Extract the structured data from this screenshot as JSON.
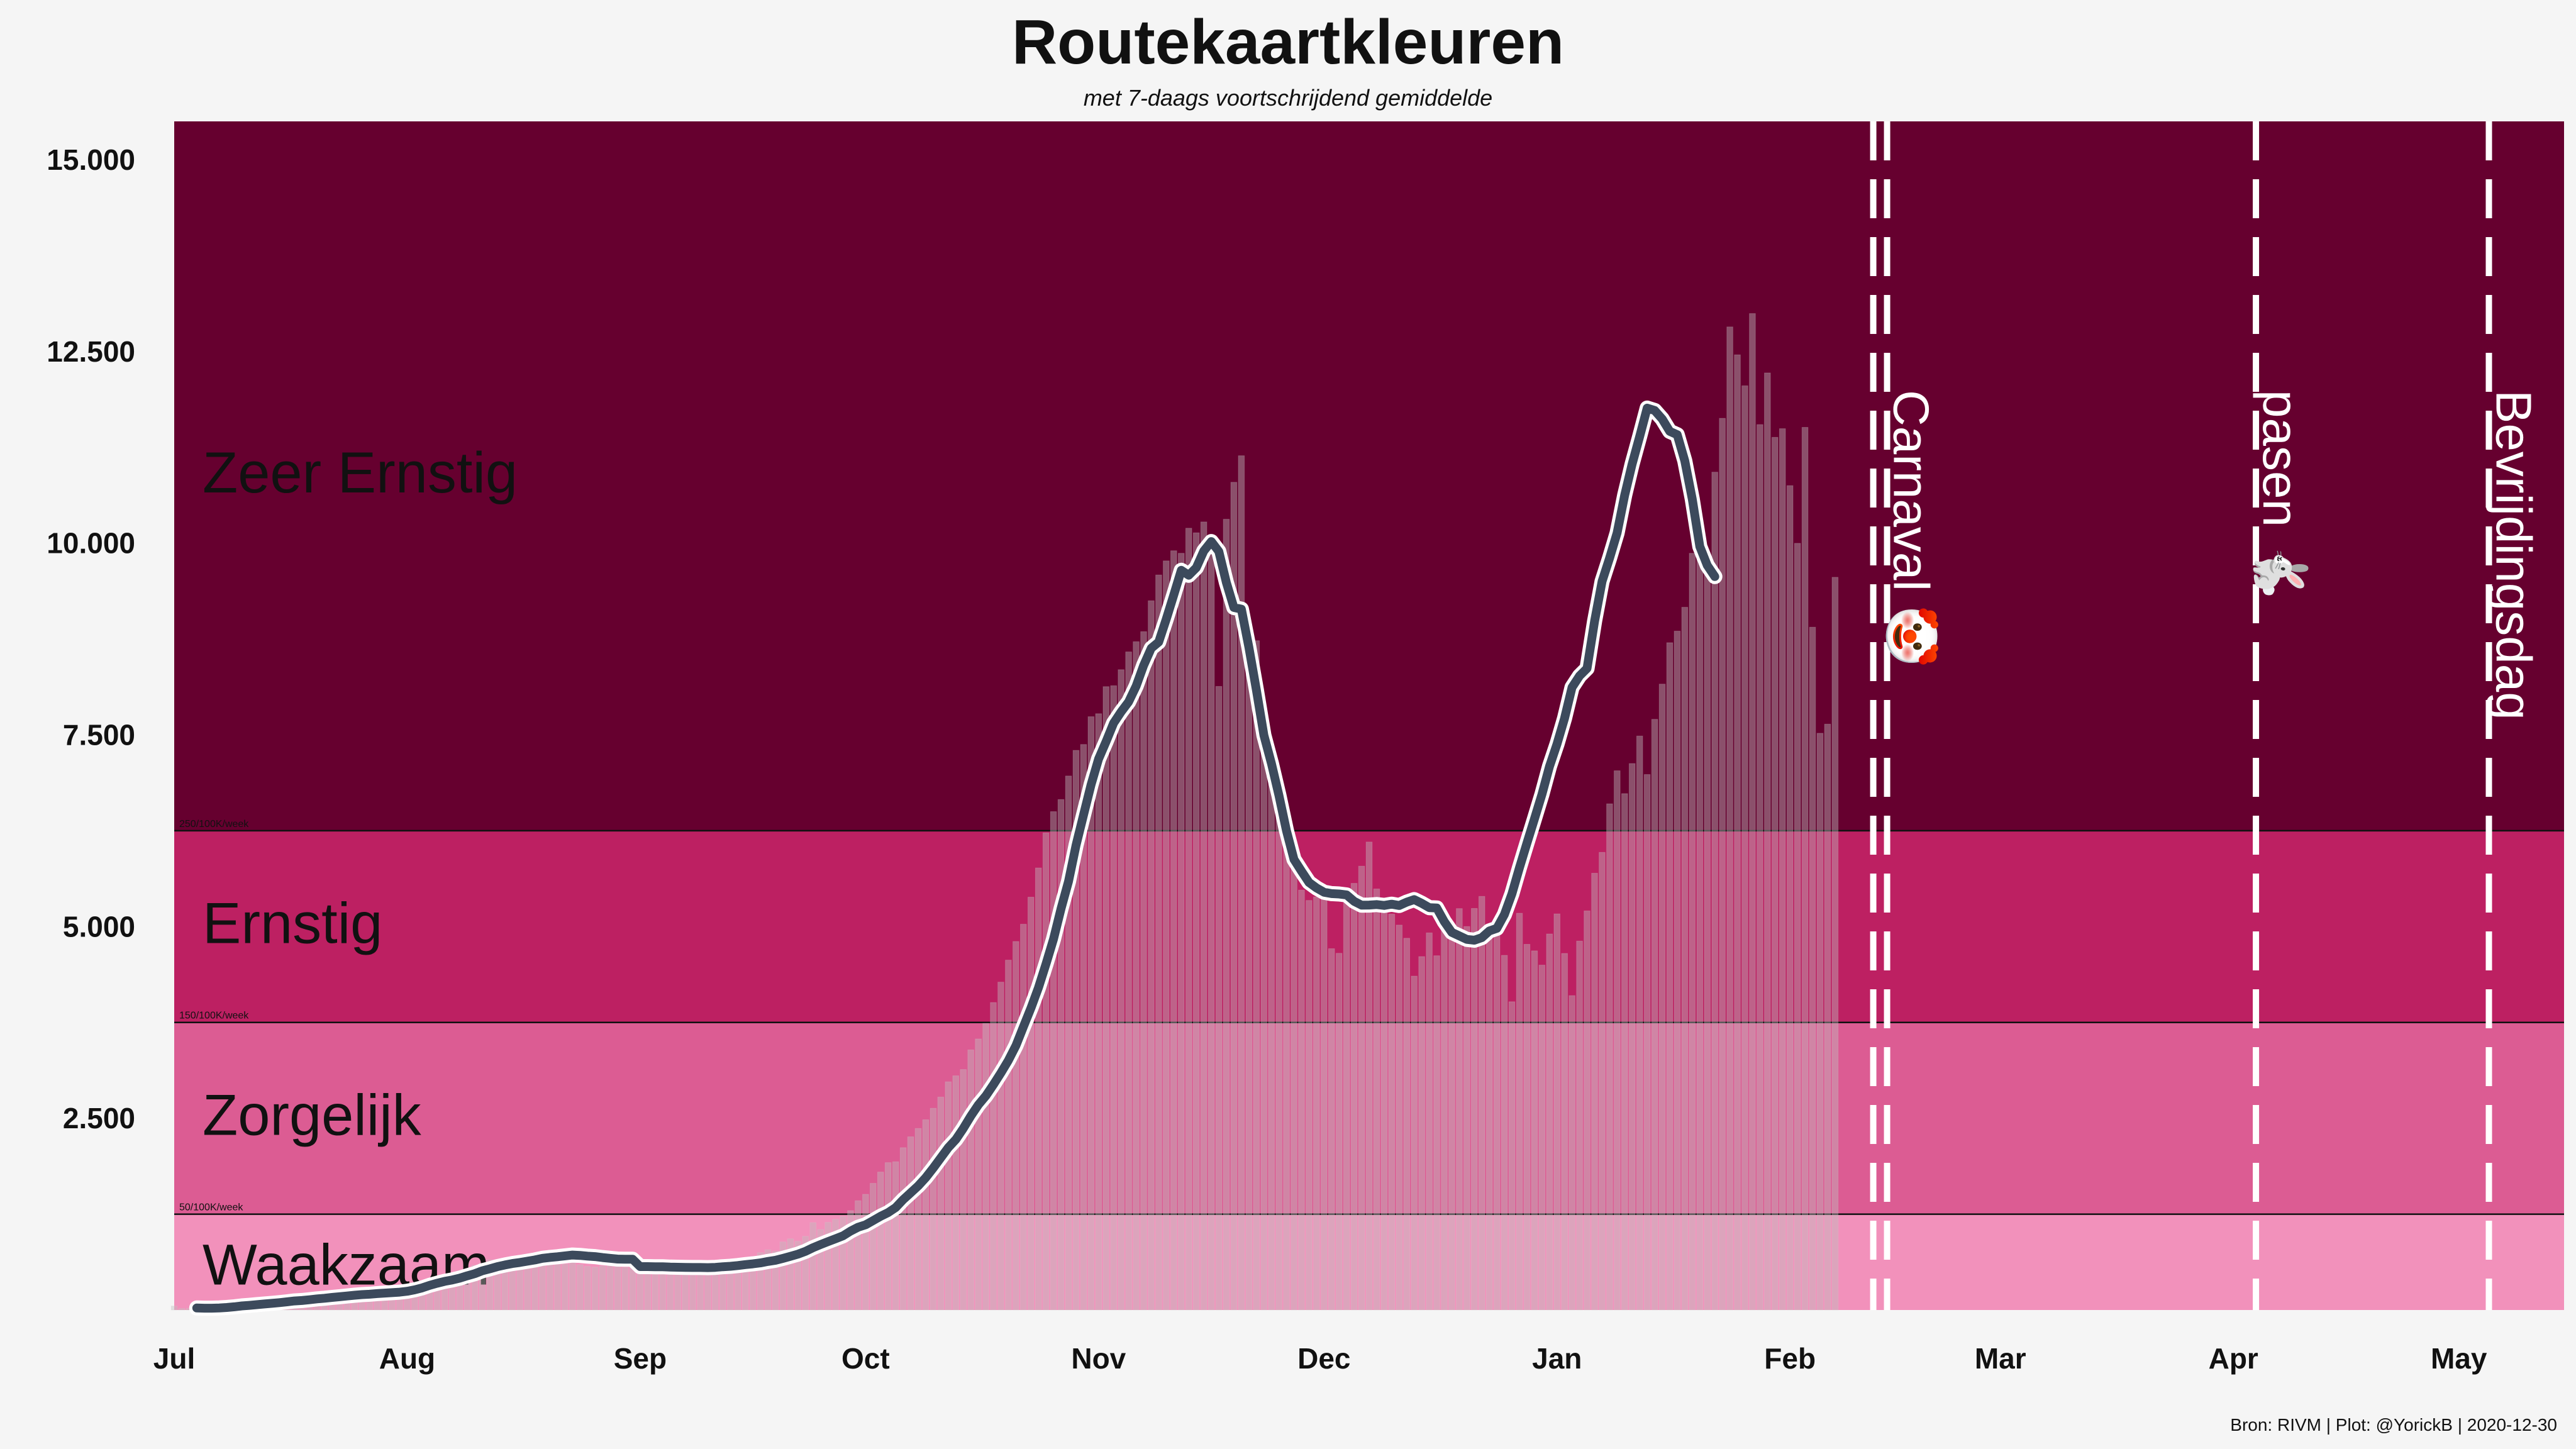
{
  "header": {
    "title": "Routekaartkleuren",
    "subtitle": "met 7-daags voortschrijdend gemiddelde"
  },
  "caption": "Bron: RIVM | Plot: @YorickB  |  2020-12-30",
  "chart_data": {
    "type": "bar",
    "x_axis": {
      "start": "2020-07-01",
      "end": "2021-05-15",
      "ticks": [
        {
          "date": "2020-07-01",
          "label": "Jul"
        },
        {
          "date": "2020-08-01",
          "label": "Aug"
        },
        {
          "date": "2020-09-01",
          "label": "Sep"
        },
        {
          "date": "2020-10-01",
          "label": "Oct"
        },
        {
          "date": "2020-11-01",
          "label": "Nov"
        },
        {
          "date": "2020-12-01",
          "label": "Dec"
        },
        {
          "date": "2021-01-01",
          "label": "Jan"
        },
        {
          "date": "2021-02-01",
          "label": "Feb"
        },
        {
          "date": "2021-03-01",
          "label": "Mar"
        },
        {
          "date": "2021-04-01",
          "label": "Apr"
        },
        {
          "date": "2021-05-01",
          "label": "May"
        }
      ]
    },
    "y_axis": {
      "ylim": [
        0,
        15500
      ],
      "ticks": [
        {
          "value": 2500,
          "label": "2.500"
        },
        {
          "value": 5000,
          "label": "5.000"
        },
        {
          "value": 7500,
          "label": "7.500"
        },
        {
          "value": 10000,
          "label": "10.000"
        },
        {
          "value": 12500,
          "label": "12.500"
        },
        {
          "value": 15000,
          "label": "15.000"
        }
      ]
    },
    "bands": [
      {
        "label": "Waakzaam",
        "from": 0,
        "to": 1250,
        "color": "#f291bb",
        "threshold_label": ""
      },
      {
        "label": "Zorgelijk",
        "from": 1250,
        "to": 3750,
        "color": "#dc5c93",
        "threshold_label": "50/100K/week"
      },
      {
        "label": "Ernstig",
        "from": 3750,
        "to": 6250,
        "color": "#bd2062",
        "threshold_label": "150/100K/week"
      },
      {
        "label": "Zeer Ernstig",
        "from": 6250,
        "to": 15500,
        "color": "#66002f",
        "threshold_label": "250/100K/week"
      }
    ],
    "events": [
      {
        "date": "2021-02-13",
        "label": "Carnaval 🤡",
        "double": true
      },
      {
        "date": "2021-04-04",
        "label": "pasen 🐇",
        "double": false
      },
      {
        "date": "2021-05-05",
        "label": "Bevrijdingsdag",
        "double": false
      }
    ],
    "daily": {
      "start": "2020-07-01",
      "values": [
        52,
        20,
        22,
        21,
        16,
        18,
        21,
        12,
        50,
        38,
        66,
        31,
        60,
        54,
        93,
        124,
        137,
        100,
        97,
        93,
        70,
        97,
        154,
        132,
        176,
        203,
        184,
        196,
        141,
        128,
        185,
        289,
        343,
        380,
        371,
        384,
        462,
        431,
        510,
        530,
        583,
        611,
        655,
        622,
        625,
        668,
        635,
        720,
        698,
        726,
        741,
        660,
        599,
        619,
        590,
        568,
        559,
        575,
        576,
        567,
        556,
        573,
        587,
        535,
        577,
        523,
        573,
        556,
        579,
        555,
        579,
        595,
        545,
        620,
        586,
        615,
        624,
        679,
        748,
        786,
        769,
        888,
        929,
        896,
        961,
        1140,
        1050,
        1143,
        1183,
        1220,
        1296,
        1425,
        1509,
        1652,
        1799,
        1922,
        1933,
        2117,
        2259,
        2368,
        2481,
        2631,
        2777,
        2976,
        3054,
        3136,
        3392,
        3535,
        3738,
        4010,
        4276,
        4563,
        4806,
        5031,
        5384,
        5765,
        6223,
        6499,
        6657,
        6964,
        7298,
        7375,
        7737,
        7776,
        8129,
        8141,
        8350,
        8582,
        8715,
        8846,
        9249,
        9585,
        9769,
        9901,
        9868,
        10195,
        10135,
        10277,
        9854,
        8132,
        10312,
        10794,
        11140,
        8813,
        8728,
        7802,
        7305,
        6839,
        6262,
        5846,
        5476,
        5341,
        5387,
        5457,
        4712,
        4652,
        5424,
        5564,
        5788,
        6103,
        5491,
        5297,
        5163,
        5020,
        4848,
        4354,
        4609,
        4918,
        4620,
        5010,
        4912,
        5235,
        5001,
        5237,
        5394,
        4993,
        5006,
        4625,
        4020,
        5174,
        4769,
        4684,
        4498,
        4904,
        5166,
        4650,
        4100,
        4811,
        5205,
        5696,
        5968,
        6601,
        7032,
        6734,
        7126,
        7485,
        6983,
        7703,
        8162,
        8702,
        8853,
        9164,
        9868,
        10312,
        9640,
        10926,
        11628,
        12820,
        12456,
        12052,
        12994,
        11546,
        12220,
        11380,
        11493,
        10750,
        9998,
        11510,
        8904,
        7521,
        7640,
        9555
      ]
    },
    "avg7": {
      "start": "2020-07-04",
      "values": [
        26,
        24,
        24,
        27,
        33,
        42,
        53,
        61,
        70,
        79,
        87,
        96,
        107,
        118,
        124,
        134,
        145,
        153,
        164,
        173,
        183,
        193,
        201,
        206,
        214,
        221,
        226,
        233,
        244,
        263,
        289,
        322,
        349,
        374,
        392,
        416,
        446,
        474,
        512,
        537,
        565,
        587,
        606,
        620,
        636,
        653,
        674,
        686,
        695,
        706,
        717,
        712,
        703,
        696,
        684,
        674,
        664,
        662,
        662,
        566,
        566,
        564,
        564,
        559,
        558,
        556,
        554,
        554,
        553,
        556,
        564,
        570,
        580,
        592,
        602,
        614,
        633,
        649,
        673,
        700,
        728,
        765,
        813,
        854,
        892,
        929,
        968,
        1029,
        1079,
        1111,
        1166,
        1223,
        1270,
        1336,
        1439,
        1529,
        1619,
        1726,
        1851,
        1985,
        2117,
        2223,
        2368,
        2530,
        2675,
        2793,
        2938,
        3092,
        3255,
        3448,
        3694,
        3938,
        4203,
        4512,
        4836,
        5233,
        5589,
        6061,
        6457,
        6851,
        7186,
        7414,
        7653,
        7801,
        7931,
        8137,
        8407,
        8629,
        8710,
        9009,
        9323,
        9646,
        9581,
        9680,
        9898,
        10021,
        9892,
        9487,
        9161,
        9139,
        8642,
        8082,
        7494,
        7125,
        6710,
        6249,
        5876,
        5722,
        5575,
        5504,
        5448,
        5430,
        5425,
        5413,
        5330,
        5279,
        5281,
        5287,
        5276,
        5292,
        5275,
        5318,
        5352,
        5304,
        5247,
        5243,
        5065,
        4925,
        4879,
        4833,
        4822,
        4856,
        4944,
        4977,
        5158,
        5426,
        5767,
        6088,
        6405,
        6725,
        7089,
        7379,
        7715,
        8119,
        8269,
        8367,
        8983,
        9502,
        9807,
        10133,
        10624,
        11032,
        11391,
        11761,
        11730,
        11619,
        11458,
        11414,
        11074,
        10575,
        9956,
        9710,
        9564
      ]
    }
  }
}
